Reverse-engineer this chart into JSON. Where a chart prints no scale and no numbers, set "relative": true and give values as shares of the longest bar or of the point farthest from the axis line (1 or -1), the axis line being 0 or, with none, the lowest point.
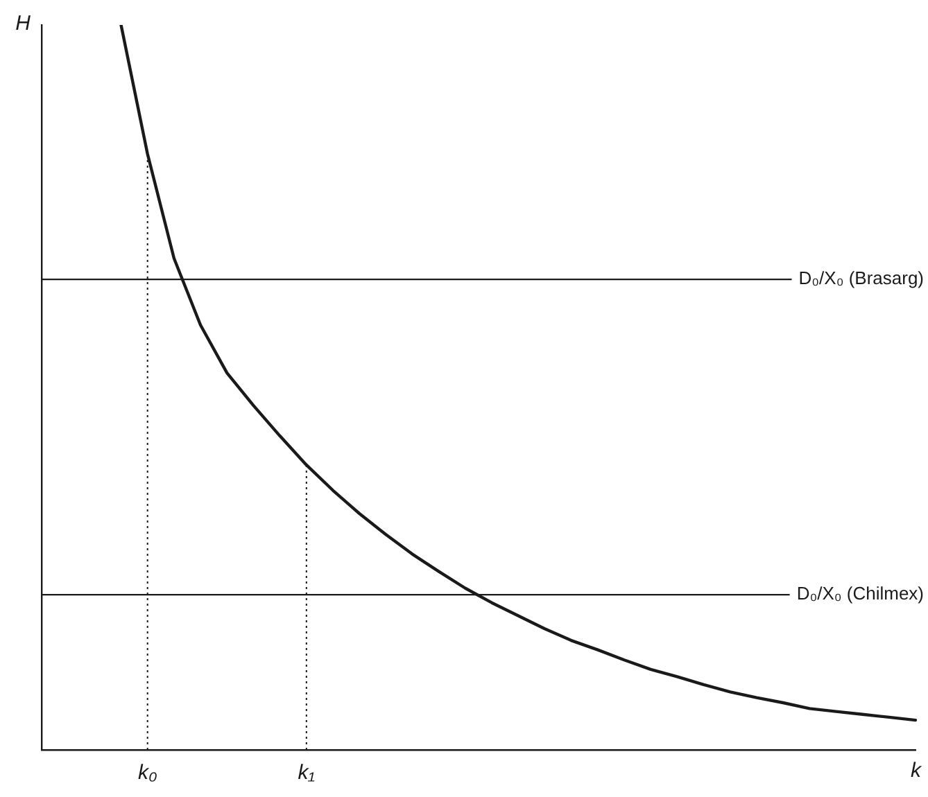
{
  "chart_data": {
    "type": "line",
    "relative": true,
    "xlabel": "k",
    "ylabel": "H",
    "categories": [
      null,
      null,
      null,
      null,
      "k₀",
      null,
      null,
      null,
      null,
      null,
      "k₁",
      null,
      null,
      null,
      null,
      null,
      null,
      null,
      null,
      null,
      null,
      null,
      null,
      null,
      null,
      null,
      null,
      null,
      null,
      null,
      null,
      null,
      null,
      null
    ],
    "series": [
      {
        "color": "#1a1a1a",
        "values": [
          null,
          null,
          null,
          1.0,
          0.822,
          0.678,
          0.586,
          0.52,
          0.475,
          0.433,
          0.393,
          0.358,
          0.326,
          0.297,
          0.27,
          0.246,
          0.223,
          0.203,
          0.185,
          0.167,
          0.151,
          0.138,
          0.124,
          0.111,
          0.101,
          0.09,
          0.08,
          0.072,
          0.065,
          0.057,
          0.053,
          0.049,
          0.045,
          0.041
        ]
      }
    ],
    "ref_lines": [
      {
        "axis": "y",
        "value": 0.649,
        "label": "D₀/X₀ (Brasarg)",
        "color": "#1a1a1a",
        "line_style": "solid"
      },
      {
        "axis": "y",
        "value": 0.214,
        "label": "D₀/X₀ (Chilmex)",
        "color": "#1a1a1a",
        "line_style": "solid"
      },
      {
        "axis": "x",
        "value": "k₀",
        "color": "#1a1a1a",
        "line_style": "dotted"
      },
      {
        "axis": "x",
        "value": "k₁",
        "color": "#1a1a1a",
        "line_style": "dotted"
      }
    ],
    "grid": false,
    "legend": false,
    "marker": "none",
    "line_style": "solid"
  }
}
